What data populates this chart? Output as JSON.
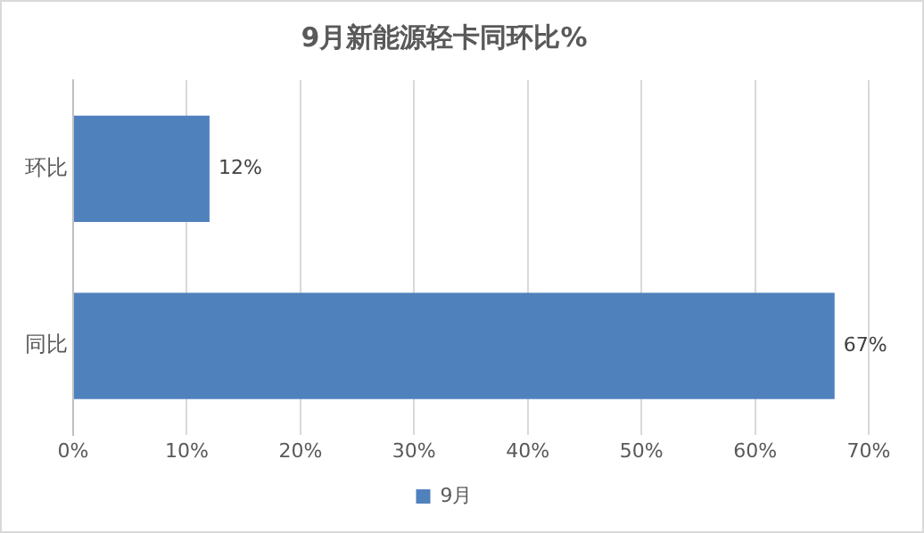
{
  "chart_data": {
    "type": "bar",
    "orientation": "horizontal",
    "title": "9月新能源轻卡同环比%",
    "categories": [
      "环比",
      "同比"
    ],
    "series": [
      {
        "name": "9月",
        "color": "#4f81bd",
        "values": [
          12,
          67
        ],
        "value_labels": [
          "12%",
          "67%"
        ]
      }
    ],
    "xlim": [
      0,
      70
    ],
    "xticks": [
      {
        "value": 0,
        "label": "0%"
      },
      {
        "value": 10,
        "label": "10%"
      },
      {
        "value": 20,
        "label": "20%"
      },
      {
        "value": 30,
        "label": "30%"
      },
      {
        "value": 40,
        "label": "40%"
      },
      {
        "value": 50,
        "label": "50%"
      },
      {
        "value": 60,
        "label": "60%"
      },
      {
        "value": 70,
        "label": "70%"
      }
    ],
    "grid": "x",
    "legend": "bottom"
  }
}
